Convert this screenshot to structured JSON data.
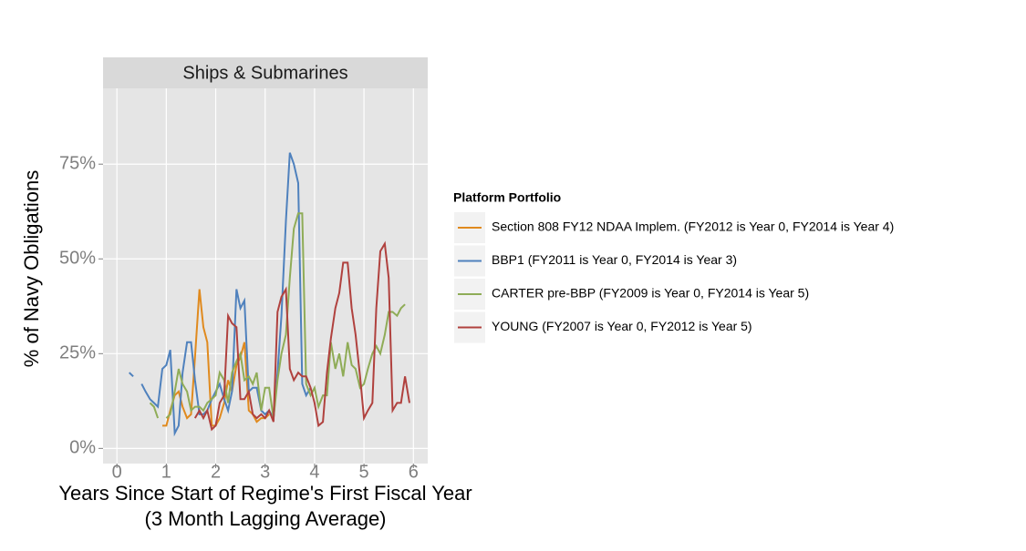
{
  "chart_data": {
    "type": "line",
    "facet_title": "Ships & Submarines",
    "x_label": "Years Since Start of Regime's First Fiscal Year",
    "x_sublabel": "(3 Month Lagging Average)",
    "y_label": "% of Navy Obligations",
    "legend_title": "Platform Portfolio",
    "legend_position": "right",
    "grid": true,
    "xlim": [
      -0.28,
      6.29
    ],
    "ylim": [
      -4,
      95
    ],
    "xticks": [
      0,
      1,
      2,
      3,
      4,
      5,
      6
    ],
    "yticks": [
      {
        "value": 0,
        "label": "0%"
      },
      {
        "value": 25,
        "label": "25%"
      },
      {
        "value": 50,
        "label": "50%"
      },
      {
        "value": 75,
        "label": "75%"
      }
    ],
    "x": [
      0.25,
      0.33,
      0.42,
      0.5,
      0.58,
      0.67,
      0.75,
      0.83,
      0.92,
      1.0,
      1.08,
      1.17,
      1.25,
      1.33,
      1.42,
      1.5,
      1.58,
      1.67,
      1.75,
      1.83,
      1.92,
      2.0,
      2.08,
      2.17,
      2.25,
      2.33,
      2.42,
      2.5,
      2.58,
      2.67,
      2.75,
      2.83,
      2.92,
      3.0,
      3.08,
      3.17,
      3.25,
      3.33,
      3.42,
      3.5,
      3.58,
      3.67,
      3.75,
      3.83,
      3.92,
      4.0,
      4.08,
      4.17,
      4.25,
      4.33,
      4.42,
      4.5,
      4.58,
      4.67,
      4.75,
      4.83,
      4.92,
      5.0,
      5.08,
      5.17,
      5.25,
      5.33,
      5.42,
      5.5,
      5.58,
      5.67,
      5.75,
      5.83,
      5.92
    ],
    "series": [
      {
        "name": "Section 808 FY12 NDAA Implem. (FY2012 is Year 0, FY2014 is Year 4)",
        "color": "#e08a1e",
        "values": [
          null,
          null,
          null,
          null,
          null,
          null,
          null,
          null,
          6,
          6,
          10,
          14,
          15,
          11,
          8,
          9,
          24,
          42,
          32,
          28,
          6,
          6,
          8,
          12,
          18,
          15,
          22,
          24,
          28,
          10,
          9,
          7,
          8,
          8,
          9,
          null,
          null,
          null,
          null,
          null,
          null,
          null,
          null,
          null,
          null,
          null,
          null,
          null,
          null,
          null,
          null,
          null,
          null,
          null,
          null,
          null,
          null,
          null,
          null,
          null,
          null,
          null,
          null,
          null,
          null,
          null,
          null,
          null,
          null
        ]
      },
      {
        "name": "BBP1 (FY2011 is Year 0, FY2014 is Year 3)",
        "color": "#4f81bd",
        "values": [
          20,
          19,
          null,
          17,
          15,
          13,
          12,
          11,
          21,
          22,
          26,
          4,
          6,
          20,
          28,
          28,
          18,
          9,
          9,
          10,
          13,
          15,
          17,
          13,
          10,
          15,
          42,
          37,
          39,
          15,
          16,
          16,
          10,
          9,
          10,
          8,
          20,
          35,
          60,
          78,
          75,
          70,
          17,
          14,
          16,
          null,
          null,
          null,
          null,
          null,
          null,
          null,
          null,
          null,
          null,
          null,
          null,
          null,
          null,
          null,
          null,
          null,
          null,
          null,
          null,
          null,
          null,
          null,
          null
        ]
      },
      {
        "name": "CARTER pre-BBP (FY2009 is Year 0, FY2014 is Year 5)",
        "color": "#8fac57",
        "values": [
          null,
          null,
          null,
          null,
          null,
          12,
          11,
          8,
          null,
          8,
          9,
          15,
          21,
          17,
          15,
          10,
          11,
          11,
          10,
          12,
          13,
          14,
          20,
          18,
          12,
          20,
          23,
          25,
          18,
          19,
          17,
          20,
          10,
          16,
          16,
          8,
          18,
          25,
          30,
          45,
          58,
          62,
          62,
          17,
          14,
          16,
          11,
          14,
          14,
          28,
          21,
          25,
          19,
          28,
          22,
          21,
          16,
          17,
          21,
          25,
          27,
          25,
          30,
          36,
          36,
          35,
          37,
          38,
          null
        ]
      },
      {
        "name": "YOUNG (FY2007 is Year 0, FY2012 is Year 5)",
        "color": "#b0413e",
        "values": [
          null,
          null,
          null,
          null,
          null,
          null,
          null,
          null,
          null,
          null,
          null,
          null,
          null,
          null,
          null,
          null,
          8,
          10,
          8,
          10,
          5,
          6,
          12,
          14,
          35,
          33,
          32,
          13,
          13,
          15,
          9,
          8,
          9,
          8,
          10,
          7,
          36,
          40,
          42,
          21,
          18,
          20,
          19,
          19,
          16,
          12,
          6,
          7,
          20,
          29,
          37,
          41,
          49,
          49,
          37,
          30,
          19,
          8,
          10,
          12,
          37,
          52,
          54,
          45,
          10,
          12,
          12,
          19,
          12
        ]
      }
    ]
  }
}
